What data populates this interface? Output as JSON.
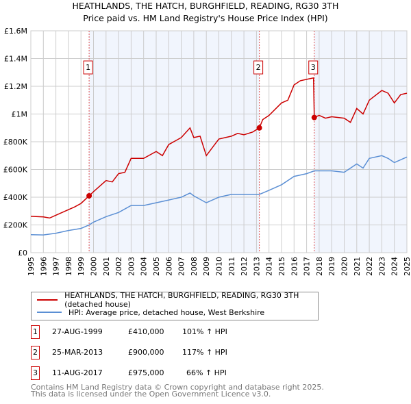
{
  "chart_data": {
    "type": "line",
    "title": "HEATHLANDS, THE HATCH, BURGHFIELD, READING, RG30 3TH",
    "subtitle": "Price paid vs. HM Land Registry's House Price Index (HPI)",
    "xlim": [
      1995,
      2025
    ],
    "ylim": [
      0,
      1600000
    ],
    "x_ticks": [
      "1995",
      "1996",
      "1997",
      "1998",
      "1999",
      "2000",
      "2001",
      "2002",
      "2003",
      "2004",
      "2005",
      "2006",
      "2007",
      "2008",
      "2009",
      "2010",
      "2011",
      "2012",
      "2013",
      "2014",
      "2015",
      "2016",
      "2017",
      "2018",
      "2019",
      "2020",
      "2021",
      "2022",
      "2023",
      "2024",
      "2025"
    ],
    "y_ticks": [
      {
        "v": 0,
        "label": "£0"
      },
      {
        "v": 200000,
        "label": "£200K"
      },
      {
        "v": 400000,
        "label": "£400K"
      },
      {
        "v": 600000,
        "label": "£600K"
      },
      {
        "v": 800000,
        "label": "£800K"
      },
      {
        "v": 1000000,
        "label": "£1M"
      },
      {
        "v": 1200000,
        "label": "£1.2M"
      },
      {
        "v": 1400000,
        "label": "£1.4M"
      },
      {
        "v": 1600000,
        "label": "£1.6M"
      }
    ],
    "grid": true,
    "series": [
      {
        "name": "HEATHLANDS, THE HATCH, BURGHFIELD, READING, RG30 3TH (detached house)",
        "color": "#cc0000",
        "x": [
          1995,
          1996,
          1996.5,
          1997,
          1998,
          1998.5,
          1999,
          1999.65,
          2000,
          2001,
          2001.5,
          2002,
          2002.5,
          2003,
          2004,
          2005,
          2005.5,
          2006,
          2007,
          2007.7,
          2008,
          2008.5,
          2009,
          2009.5,
          2010,
          2011,
          2011.5,
          2012,
          2012.7,
          2013.23,
          2013.5,
          2014,
          2015,
          2015.5,
          2016,
          2016.5,
          2017,
          2017.55,
          2017.61,
          2018,
          2018.5,
          2019,
          2020,
          2020.5,
          2021,
          2021.5,
          2022,
          2023,
          2023.5,
          2024,
          2024.5,
          2025
        ],
        "y": [
          262000,
          258000,
          250000,
          270000,
          310000,
          330000,
          355000,
          410000,
          440000,
          520000,
          510000,
          570000,
          580000,
          680000,
          680000,
          730000,
          700000,
          780000,
          830000,
          900000,
          830000,
          840000,
          700000,
          760000,
          820000,
          840000,
          860000,
          850000,
          870000,
          900000,
          960000,
          990000,
          1080000,
          1100000,
          1210000,
          1240000,
          1250000,
          1260000,
          975000,
          990000,
          970000,
          980000,
          970000,
          940000,
          1040000,
          1000000,
          1100000,
          1170000,
          1150000,
          1080000,
          1140000,
          1150000
        ]
      },
      {
        "name": "HPI: Average price, detached house, West Berkshire",
        "color": "#5b8fd4",
        "x": [
          1995,
          1996,
          1997,
          1998,
          1999,
          1999.65,
          2000,
          2001,
          2002,
          2003,
          2004,
          2005,
          2006,
          2007,
          2007.7,
          2008,
          2009,
          2010,
          2011,
          2012,
          2013.23,
          2014,
          2015,
          2016,
          2017,
          2017.61,
          2018,
          2019,
          2020,
          2021,
          2021.5,
          2022,
          2023,
          2023.5,
          2024,
          2025
        ],
        "y": [
          130000,
          128000,
          140000,
          160000,
          175000,
          200000,
          220000,
          260000,
          290000,
          340000,
          340000,
          360000,
          380000,
          400000,
          430000,
          410000,
          360000,
          400000,
          420000,
          420000,
          420000,
          450000,
          490000,
          550000,
          570000,
          590000,
          590000,
          590000,
          580000,
          640000,
          610000,
          680000,
          700000,
          680000,
          650000,
          690000
        ]
      }
    ],
    "sales": [
      {
        "num": "1",
        "x": 1999.65,
        "price": 410000,
        "date": "27-AUG-1999",
        "price_label": "£410,000",
        "hpi": "101% ↑ HPI"
      },
      {
        "num": "2",
        "x": 2013.23,
        "price": 900000,
        "date": "25-MAR-2013",
        "price_label": "£900,000",
        "hpi": "117% ↑ HPI"
      },
      {
        "num": "3",
        "x": 2017.61,
        "price": 975000,
        "date": "11-AUG-2017",
        "price_label": "£975,000",
        "hpi": "66% ↑ HPI"
      }
    ]
  },
  "legend": {
    "red": "HEATHLANDS, THE HATCH, BURGHFIELD, READING, RG30 3TH (detached house)",
    "blue": "HPI: Average price, detached house, West Berkshire"
  },
  "footer": {
    "line1": "Contains HM Land Registry data © Crown copyright and database right 2025.",
    "line2": "This data is licensed under the Open Government Licence v3.0."
  }
}
